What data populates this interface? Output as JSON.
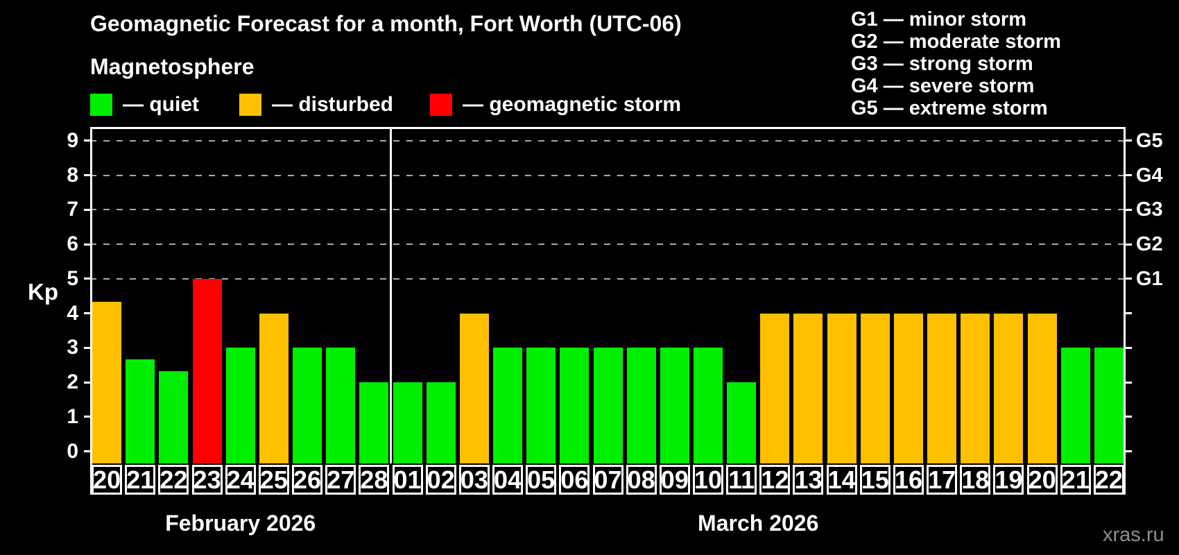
{
  "subtitle": "Magnetosphere",
  "magnetosphere_legend": {
    "quiet": "— quiet",
    "disturbed": "— disturbed",
    "storm": "— geomagnetic storm"
  },
  "g_legend": [
    "G1 — minor storm",
    "G2 — moderate storm",
    "G3 — strong storm",
    "G4 — severe storm",
    "G5 — extreme storm"
  ],
  "watermark": "xras.ru",
  "chart_data": {
    "type": "bar",
    "title": "Geomagnetic Forecast for a month, Fort Worth (UTC-06)",
    "ylabel": "Kp",
    "ylim": [
      -0.35,
      9.4
    ],
    "kp_ticks": [
      0,
      1,
      2,
      3,
      4,
      5,
      6,
      7,
      8,
      9
    ],
    "gridlines_at": [
      5,
      6,
      7,
      8,
      9
    ],
    "g_scale": [
      {
        "kp": 5,
        "label": "G1"
      },
      {
        "kp": 6,
        "label": "G2"
      },
      {
        "kp": 7,
        "label": "G3"
      },
      {
        "kp": 8,
        "label": "G4"
      },
      {
        "kp": 9,
        "label": "G5"
      }
    ],
    "status_colors": {
      "quiet": "#00EE00",
      "disturbed": "#FFC000",
      "storm": "#FF0000"
    },
    "grid_color": "#AAAAAA",
    "months": [
      {
        "label": "February 2026",
        "count": 9
      },
      {
        "label": "March 2026",
        "count": 22
      }
    ],
    "bars": [
      {
        "day": "20",
        "kp": 4.33,
        "status": "disturbed"
      },
      {
        "day": "21",
        "kp": 2.67,
        "status": "quiet"
      },
      {
        "day": "22",
        "kp": 2.33,
        "status": "quiet"
      },
      {
        "day": "23",
        "kp": 5,
        "status": "storm"
      },
      {
        "day": "24",
        "kp": 3,
        "status": "quiet"
      },
      {
        "day": "25",
        "kp": 4,
        "status": "disturbed"
      },
      {
        "day": "26",
        "kp": 3,
        "status": "quiet"
      },
      {
        "day": "27",
        "kp": 3,
        "status": "quiet"
      },
      {
        "day": "28",
        "kp": 2,
        "status": "quiet"
      },
      {
        "day": "01",
        "kp": 2,
        "status": "quiet"
      },
      {
        "day": "02",
        "kp": 2,
        "status": "quiet"
      },
      {
        "day": "03",
        "kp": 4,
        "status": "disturbed"
      },
      {
        "day": "04",
        "kp": 3,
        "status": "quiet"
      },
      {
        "day": "05",
        "kp": 3,
        "status": "quiet"
      },
      {
        "day": "06",
        "kp": 3,
        "status": "quiet"
      },
      {
        "day": "07",
        "kp": 3,
        "status": "quiet"
      },
      {
        "day": "08",
        "kp": 3,
        "status": "quiet"
      },
      {
        "day": "09",
        "kp": 3,
        "status": "quiet"
      },
      {
        "day": "10",
        "kp": 3,
        "status": "quiet"
      },
      {
        "day": "11",
        "kp": 2,
        "status": "quiet"
      },
      {
        "day": "12",
        "kp": 4,
        "status": "disturbed"
      },
      {
        "day": "13",
        "kp": 4,
        "status": "disturbed"
      },
      {
        "day": "14",
        "kp": 4,
        "status": "disturbed"
      },
      {
        "day": "15",
        "kp": 4,
        "status": "disturbed"
      },
      {
        "day": "16",
        "kp": 4,
        "status": "disturbed"
      },
      {
        "day": "17",
        "kp": 4,
        "status": "disturbed"
      },
      {
        "day": "18",
        "kp": 4,
        "status": "disturbed"
      },
      {
        "day": "19",
        "kp": 4,
        "status": "disturbed"
      },
      {
        "day": "20",
        "kp": 4,
        "status": "disturbed"
      },
      {
        "day": "21",
        "kp": 3,
        "status": "quiet"
      },
      {
        "day": "22",
        "kp": 3,
        "status": "quiet"
      }
    ]
  }
}
